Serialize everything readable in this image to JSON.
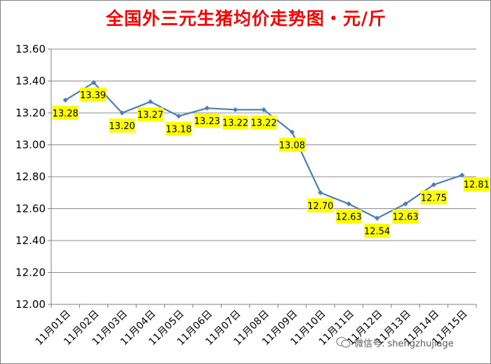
{
  "chart_data": {
    "type": "line",
    "title": "全国外三元生猪均价走势图・元/斤",
    "categories": [
      "11月01日",
      "11月02日",
      "11月03日",
      "11月04日",
      "11月05日",
      "11月06日",
      "11月07日",
      "11月08日",
      "11月09日",
      "11月10日",
      "11月11日",
      "11月12日",
      "11月13日",
      "11月14日",
      "11月15日"
    ],
    "series": [
      {
        "values": [
          13.28,
          13.39,
          13.2,
          13.27,
          13.18,
          13.23,
          13.22,
          13.22,
          13.08,
          12.7,
          12.63,
          12.54,
          12.63,
          12.75,
          12.81
        ]
      }
    ],
    "data_labels": [
      "13.28",
      "13.39",
      "13.20",
      "13.27",
      "13.18",
      "13.23",
      "13.22",
      "13.22",
      "13.08",
      "12.70",
      "12.63",
      "12.54",
      "12.63",
      "12.75",
      "12.81"
    ],
    "y_ticks": [
      "12.00",
      "12.20",
      "12.40",
      "12.60",
      "12.80",
      "13.00",
      "13.20",
      "13.40",
      "13.60"
    ],
    "ylim": [
      12.0,
      13.6
    ],
    "xlabel": "",
    "ylabel": "",
    "grid": "horizontal",
    "line_color": "#4a7ebb",
    "label_bg_color": "#ffff00",
    "title_color": "#ff0000"
  },
  "watermark": {
    "text": "微信号: shengzhujiage"
  }
}
